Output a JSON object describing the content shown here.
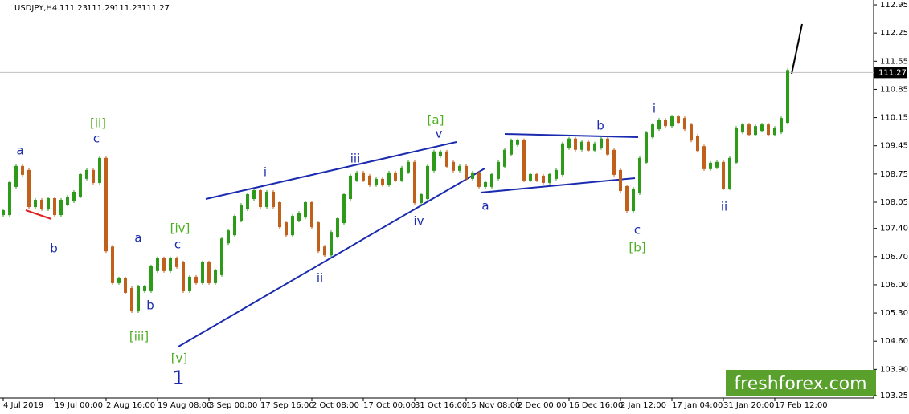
{
  "chart_data": {
    "type": "price-bars",
    "title": "USDJPY,H4",
    "ohlc": [
      111.23,
      111.29,
      111.23,
      111.27
    ],
    "last_price": 111.27,
    "up_color": "#2e9a1a",
    "down_color": "#c0601a",
    "ylim": [
      103.19,
      113.07
    ],
    "yticks": [
      112.95,
      112.25,
      {
        "value": 111.55,
        "label": "111.55"
      },
      110.85,
      110.15,
      109.45,
      108.75,
      108.05,
      {
        "value": 107.4,
        "label": "107.40"
      },
      {
        "value": 106.7,
        "label": "106.70"
      },
      {
        "value": 106,
        "label": "106.00"
      },
      {
        "value": 105.3,
        "label": "105.30"
      },
      {
        "value": 104.6,
        "label": "104.60"
      },
      {
        "value": 103.9,
        "label": "103.90"
      },
      103.25
    ],
    "x_tick_labels": [
      "4 Jul 2019",
      "19 Jul 00:00",
      "2 Aug 16:00",
      "19 Aug 08:00",
      "3 Sep 00:00",
      "17 Sep 16:00",
      "2 Oct 08:00",
      "17 Oct 00:00",
      "31 Oct 16:00",
      "15 Nov 08:00",
      "2 Dec 00:00",
      "16 Dec 16:00",
      "2 Jan 12:00",
      "17 Jan 04:00",
      "31 Jan 20:00",
      "17 Feb 12:00"
    ],
    "values": [
      107.79,
      108.49,
      108.89,
      108.79,
      107.99,
      108.05,
      107.93,
      108.09,
      107.79,
      108.05,
      108.13,
      108.25,
      108.69,
      108.79,
      108.59,
      109.09,
      106.89,
      106.1,
      106.1,
      105.86,
      105.4,
      105.9,
      105.9,
      106.4,
      106.6,
      106.4,
      106.6,
      106.5,
      105.9,
      106.14,
      106.1,
      106.5,
      106.1,
      106.3,
      107.09,
      107.29,
      107.65,
      107.93,
      108.19,
      108.29,
      107.99,
      108.25,
      107.99,
      107.49,
      107.29,
      107.65,
      107.73,
      107.99,
      107.49,
      106.89,
      106.79,
      107.25,
      107.59,
      108.19,
      108.65,
      108.73,
      108.65,
      108.53,
      108.57,
      108.53,
      108.73,
      108.65,
      108.85,
      108.99,
      108.09,
      108.19,
      108.89,
      109.25,
      109.25,
      108.99,
      108.89,
      108.89,
      108.69,
      108.73,
      108.49,
      108.49,
      108.69,
      108.99,
      109.29,
      109.53,
      109.53,
      108.65,
      108.69,
      108.65,
      108.59,
      108.69,
      108.79,
      109.45,
      109.57,
      109.41,
      109.49,
      109.39,
      109.45,
      109.57,
      109.29,
      108.79,
      108.39,
      107.89,
      108.33,
      109.09,
      109.72,
      109.92,
      110.04,
      110,
      110.12,
      110.08,
      109.92,
      109.64,
      109.38,
      108.93,
      108.97,
      108.99,
      108.45,
      109.09,
      109.84,
      109.92,
      109.78,
      109.88,
      109.92,
      109.78,
      109.84,
      110.08,
      111.27
    ],
    "annotations": [
      {
        "text": "a",
        "color": "#1a2bb0"
      },
      {
        "text": "b",
        "color": "#1a2bb0"
      },
      {
        "text": "[ii]",
        "color": "#4caf20"
      },
      {
        "text": "c",
        "color": "#1a2bb0"
      },
      {
        "text": "a",
        "color": "#1a2bb0"
      },
      {
        "text": "b",
        "color": "#1a2bb0"
      },
      {
        "text": "[iii]",
        "color": "#4caf20"
      },
      {
        "text": "[iv]",
        "color": "#4caf20"
      },
      {
        "text": "c",
        "color": "#1a2bb0"
      },
      {
        "text": "[v]",
        "color": "#4caf20"
      },
      {
        "text": "1",
        "color": "#1a2bb0"
      },
      {
        "text": "i",
        "color": "#1a2bb0"
      },
      {
        "text": "iii",
        "color": "#1a2bb0"
      },
      {
        "text": "ii",
        "color": "#1a2bb0"
      },
      {
        "text": "iv",
        "color": "#1a2bb0"
      },
      {
        "text": "[a]",
        "color": "#4caf20"
      },
      {
        "text": "v",
        "color": "#1a2bb0"
      },
      {
        "text": "a",
        "color": "#1a2bb0"
      },
      {
        "text": "b",
        "color": "#1a2bb0"
      },
      {
        "text": "c",
        "color": "#1a2bb0"
      },
      {
        "text": "[b]",
        "color": "#4caf20"
      },
      {
        "text": "i",
        "color": "#1a2bb0"
      },
      {
        "text": "ii",
        "color": "#1a2bb0"
      }
    ],
    "watermark": "freshforex.com"
  }
}
